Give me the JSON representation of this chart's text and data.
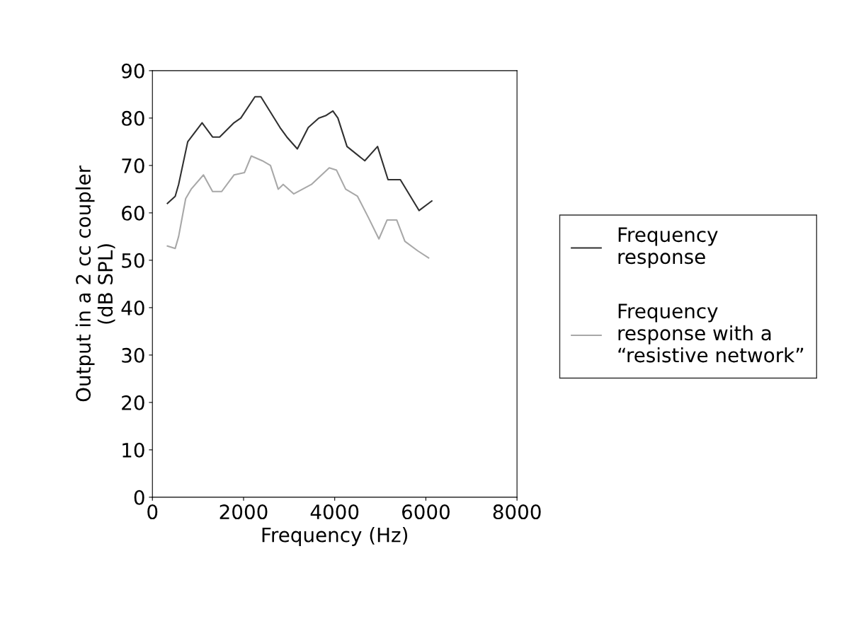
{
  "chart_data": {
    "type": "line",
    "xlabel": "Frequency (Hz)",
    "ylabel": "Output in a 2 cc coupler\n(dB SPL)",
    "xlim": [
      0,
      8000
    ],
    "xticks": [
      0,
      2000,
      4000,
      6000,
      8000
    ],
    "ylim": [
      0,
      90
    ],
    "yticks": [
      0,
      10,
      20,
      30,
      40,
      50,
      60,
      70,
      80,
      90
    ],
    "grid": false,
    "legend": "right",
    "marker": "none",
    "line_style": "solid",
    "series": [
      {
        "name": "Frequency\nresponse",
        "color": "#303030",
        "x": [
          330,
          500,
          575,
          775,
          1090,
          1320,
          1475,
          1790,
          1940,
          2250,
          2380,
          2800,
          2950,
          3180,
          3420,
          3650,
          3800,
          3960,
          4070,
          4270,
          4660,
          4940,
          5170,
          5440,
          5850,
          6130
        ],
        "values": [
          62,
          63.5,
          66,
          75,
          79,
          76,
          76,
          79,
          80,
          84.5,
          84.5,
          78,
          76,
          73.5,
          78,
          80,
          80.5,
          81.5,
          80,
          74,
          71,
          74,
          67,
          67,
          60.5,
          62.5
        ]
      },
      {
        "name": "Frequency\nresponse with a\n“resistive network”",
        "color": "#a8a8a8",
        "x": [
          330,
          500,
          575,
          730,
          850,
          1120,
          1320,
          1520,
          1790,
          2020,
          2170,
          2410,
          2590,
          2760,
          2870,
          3100,
          3490,
          3880,
          4040,
          4240,
          4500,
          4740,
          4970,
          5150,
          5360,
          5540,
          5820,
          6060
        ],
        "values": [
          53,
          52.5,
          55,
          63,
          65,
          68,
          64.5,
          64.5,
          68,
          68.5,
          72,
          71,
          70,
          65,
          66,
          64,
          66,
          69.5,
          69,
          65,
          63.5,
          59,
          54.5,
          58.5,
          58.5,
          54,
          52,
          50.5
        ]
      }
    ]
  }
}
